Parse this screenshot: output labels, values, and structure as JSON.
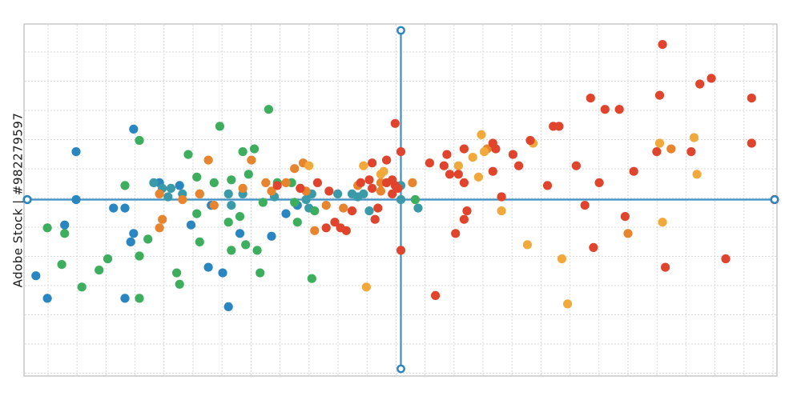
{
  "watermark_text": "Adobe Stock | #982279597",
  "colors": {
    "axis": "#3d8fc2",
    "blue": "#2a86c0",
    "teal": "#3a9aa8",
    "green": "#3cae5e",
    "orange": "#e8832e",
    "yellow": "#f2a93b",
    "red": "#e0442c",
    "grid": "#d9d9d9"
  },
  "chart_data": {
    "type": "scatter",
    "title": "",
    "xlabel": "",
    "ylabel": "",
    "xlim": [
      -13,
      13
    ],
    "ylim": [
      -6,
      6
    ],
    "grid": true,
    "legend": "none",
    "axis_handles": [
      [
        -13,
        0
      ],
      [
        13,
        0
      ],
      [
        0,
        6
      ],
      [
        0,
        -6
      ]
    ],
    "series": [
      {
        "color": "#2a86c0",
        "points": [
          [
            -11.3,
            1.7
          ],
          [
            -9.3,
            2.5
          ],
          [
            -11.3,
            0
          ],
          [
            -13.0,
            0
          ],
          [
            -11.7,
            -0.9
          ],
          [
            -12.7,
            -2.7
          ],
          [
            -12.3,
            -3.5
          ],
          [
            -10.0,
            -0.3
          ],
          [
            -9.6,
            -0.3
          ],
          [
            -9.3,
            -1.2
          ],
          [
            -9.4,
            -1.5
          ],
          [
            -9.6,
            -3.5
          ],
          [
            -8.4,
            0.6
          ],
          [
            -7.7,
            0.5
          ],
          [
            -7.3,
            -0.9
          ],
          [
            -6.7,
            -2.4
          ],
          [
            -6.2,
            -2.6
          ],
          [
            -6.0,
            -3.8
          ],
          [
            -6.6,
            -0.2
          ],
          [
            -5.6,
            -1.2
          ],
          [
            -4.5,
            -1.3
          ],
          [
            -4.0,
            -0.5
          ],
          [
            -3.6,
            -0.2
          ],
          [
            -3.2,
            0.2
          ]
        ]
      },
      {
        "color": "#3a9aa8",
        "points": [
          [
            -8.6,
            0.6
          ],
          [
            -8.3,
            0.4
          ],
          [
            -8.1,
            0.1
          ],
          [
            -8.0,
            0.4
          ],
          [
            -7.6,
            0.2
          ],
          [
            -7.0,
            0.2
          ],
          [
            -6.0,
            0.2
          ],
          [
            -5.9,
            -0.2
          ],
          [
            -5.5,
            0.2
          ],
          [
            -4.4,
            0.1
          ],
          [
            -3.3,
            0
          ],
          [
            -3.2,
            -0.3
          ],
          [
            -3.1,
            0.2
          ],
          [
            -2.2,
            0.2
          ],
          [
            -1.5,
            0.1
          ],
          [
            -1.3,
            0.2
          ],
          [
            -1.1,
            -0.4
          ],
          [
            -1.7,
            0.2
          ],
          [
            0,
            0
          ],
          [
            0,
            0.5
          ],
          [
            0.6,
            -0.3
          ]
        ]
      },
      {
        "color": "#3cae5e",
        "points": [
          [
            -12.3,
            -1.0
          ],
          [
            -11.7,
            -1.2
          ],
          [
            -11.8,
            -2.3
          ],
          [
            -11.1,
            -3.1
          ],
          [
            -10.5,
            -2.5
          ],
          [
            -10.2,
            -2.1
          ],
          [
            -9.6,
            0.5
          ],
          [
            -9.1,
            2.1
          ],
          [
            -9.1,
            -2.0
          ],
          [
            -9.1,
            -3.5
          ],
          [
            -8.8,
            -1.4
          ],
          [
            -7.8,
            -2.6
          ],
          [
            -7.7,
            -3.0
          ],
          [
            -7.4,
            1.6
          ],
          [
            -7.1,
            0.8
          ],
          [
            -7.1,
            -0.5
          ],
          [
            -7.0,
            -1.5
          ],
          [
            -6.5,
            0.6
          ],
          [
            -6.3,
            2.6
          ],
          [
            -6.0,
            -0.8
          ],
          [
            -5.9,
            0.7
          ],
          [
            -5.9,
            -1.8
          ],
          [
            -5.6,
            -0.6
          ],
          [
            -5.5,
            1.7
          ],
          [
            -5.4,
            -1.6
          ],
          [
            -5.3,
            0.9
          ],
          [
            -5.1,
            1.8
          ],
          [
            -5.0,
            -1.8
          ],
          [
            -4.9,
            -2.6
          ],
          [
            -4.8,
            -0.1
          ],
          [
            -4.6,
            3.2
          ],
          [
            -4.3,
            0.6
          ],
          [
            -3.8,
            0.6
          ],
          [
            -3.7,
            -0.1
          ],
          [
            -3.6,
            -0.8
          ],
          [
            -3.5,
            0.4
          ],
          [
            -3.1,
            -2.8
          ],
          [
            -3.0,
            -0.4
          ],
          [
            0.5,
            0
          ]
        ]
      },
      {
        "color": "#e8832e",
        "points": [
          [
            -8.4,
            0.2
          ],
          [
            -8.4,
            -1.0
          ],
          [
            -8.3,
            -0.7
          ],
          [
            -7.6,
            0
          ],
          [
            -7.0,
            0.2
          ],
          [
            -6.7,
            1.4
          ],
          [
            -6.5,
            -0.2
          ],
          [
            -5.5,
            0.4
          ],
          [
            -5.2,
            1.4
          ],
          [
            -4.7,
            0.6
          ],
          [
            -4.5,
            0.3
          ],
          [
            -4.0,
            0.6
          ],
          [
            -3.7,
            1.1
          ],
          [
            -3.4,
            1.3
          ],
          [
            -3.3,
            0.3
          ],
          [
            -3.0,
            -1.1
          ],
          [
            -2.6,
            -0.2
          ],
          [
            -2.0,
            -0.3
          ],
          [
            -1.5,
            0.5
          ],
          [
            -0.7,
            0.6
          ],
          [
            -0.7,
            0.3
          ],
          [
            0.4,
            0.6
          ],
          [
            3.0,
            1.8
          ],
          [
            7.9,
            -1.2
          ],
          [
            9.4,
            1.8
          ]
        ]
      },
      {
        "color": "#f2a93b",
        "points": [
          [
            -3.2,
            1.2
          ],
          [
            -1.3,
            1.2
          ],
          [
            -1.2,
            -3.1
          ],
          [
            -0.6,
            1.0
          ],
          [
            -0.7,
            0.9
          ],
          [
            2.0,
            1.2
          ],
          [
            2.5,
            1.5
          ],
          [
            2.8,
            2.3
          ],
          [
            2.7,
            0.8
          ],
          [
            2.9,
            1.7
          ],
          [
            3.5,
            -0.4
          ],
          [
            4.6,
            2.0
          ],
          [
            4.4,
            -1.6
          ],
          [
            5.6,
            -2.1
          ],
          [
            5.8,
            -3.7
          ],
          [
            9.1,
            -0.8
          ],
          [
            9.0,
            2.0
          ],
          [
            10.2,
            2.2
          ],
          [
            10.3,
            0.9
          ]
        ]
      },
      {
        "color": "#e0442c",
        "points": [
          [
            -4.3,
            0.5
          ],
          [
            -3.5,
            0.4
          ],
          [
            -2.9,
            0.6
          ],
          [
            -2.6,
            -1.0
          ],
          [
            -2.5,
            0.3
          ],
          [
            -2.3,
            -0.8
          ],
          [
            -1.9,
            -1.1
          ],
          [
            -1.7,
            -0.4
          ],
          [
            -1.4,
            0.6
          ],
          [
            -1.1,
            0.7
          ],
          [
            -1.0,
            0.4
          ],
          [
            -0.8,
            -0.3
          ],
          [
            -0.5,
            0.6
          ],
          [
            -0.5,
            1.4
          ],
          [
            -0.3,
            0.2
          ],
          [
            -0.2,
            0.5
          ],
          [
            -2.1,
            -1.0
          ],
          [
            -0.9,
            -0.7
          ],
          [
            -1.0,
            1.3
          ],
          [
            -0.3,
            0.7
          ],
          [
            -0.2,
            2.7
          ],
          [
            -0.1,
            0.4
          ],
          [
            0,
            -1.8
          ],
          [
            0,
            1.7
          ],
          [
            1.0,
            1.3
          ],
          [
            1.6,
            1.6
          ],
          [
            1.5,
            1.2
          ],
          [
            1.7,
            0.9
          ],
          [
            1.9,
            -1.2
          ],
          [
            2.2,
            1.8
          ],
          [
            2.0,
            0.9
          ],
          [
            2.2,
            0.6
          ],
          [
            2.3,
            -0.4
          ],
          [
            2.2,
            -0.7
          ],
          [
            3.2,
            2.0
          ],
          [
            3.2,
            1.0
          ],
          [
            3.3,
            1.8
          ],
          [
            3.5,
            0.1
          ],
          [
            3.9,
            1.6
          ],
          [
            4.1,
            1.2
          ],
          [
            4.5,
            2.1
          ],
          [
            5.1,
            0.5
          ],
          [
            5.3,
            2.6
          ],
          [
            5.5,
            2.6
          ],
          [
            6.1,
            1.2
          ],
          [
            6.4,
            -0.2
          ],
          [
            6.6,
            3.6
          ],
          [
            6.7,
            -1.7
          ],
          [
            6.9,
            0.6
          ],
          [
            7.1,
            3.2
          ],
          [
            7.6,
            3.2
          ],
          [
            7.8,
            -0.6
          ],
          [
            8.1,
            1.0
          ],
          [
            8.9,
            1.7
          ],
          [
            9.0,
            3.7
          ],
          [
            9.1,
            5.5
          ],
          [
            9.2,
            -2.4
          ],
          [
            10.1,
            1.7
          ],
          [
            10.4,
            4.1
          ],
          [
            10.8,
            4.3
          ],
          [
            11.3,
            -2.1
          ],
          [
            12.2,
            3.6
          ],
          [
            12.2,
            2.0
          ],
          [
            13.0,
            0
          ],
          [
            1.2,
            -3.4
          ]
        ]
      }
    ]
  }
}
